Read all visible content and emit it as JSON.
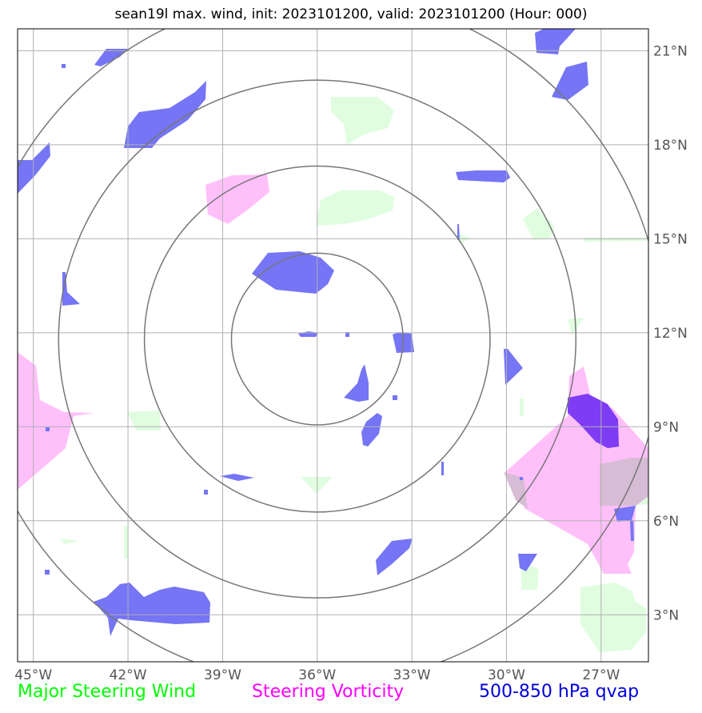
{
  "title": "sean19l max. wind, init: 2023101200, valid: 2023101200 (Hour: 000)",
  "axes": {
    "lon_ticks": [
      "45°W",
      "42°W",
      "39°W",
      "36°W",
      "33°W",
      "30°W",
      "27°W"
    ],
    "lat_ticks": [
      "21°N",
      "18°N",
      "15°N",
      "12°N",
      "9°N",
      "6°N",
      "3°N"
    ],
    "lon_range": [
      -45.5,
      -25.5
    ],
    "lat_range": [
      1.5,
      21.7
    ],
    "grid": true
  },
  "rings": {
    "center": [
      -36.0,
      11.8
    ],
    "radii_deg": [
      2.72,
      5.48,
      8.2,
      10.95
    ],
    "color": "#777777"
  },
  "legend": [
    {
      "label": "Major Steering Wind",
      "color": "#00ff00"
    },
    {
      "label": "Steering Vorticity",
      "color": "#ff00ff"
    },
    {
      "label": "500-850 hPa qvap",
      "color": "#0000dd"
    }
  ],
  "colors": {
    "qvap": "#7575f5",
    "qvap_dark": "#7f3cf5",
    "vorticity": "#ffc0fa",
    "wind": "#e0fde0",
    "overlap": "#d7bcd5",
    "grid": "#b0b0b0"
  }
}
